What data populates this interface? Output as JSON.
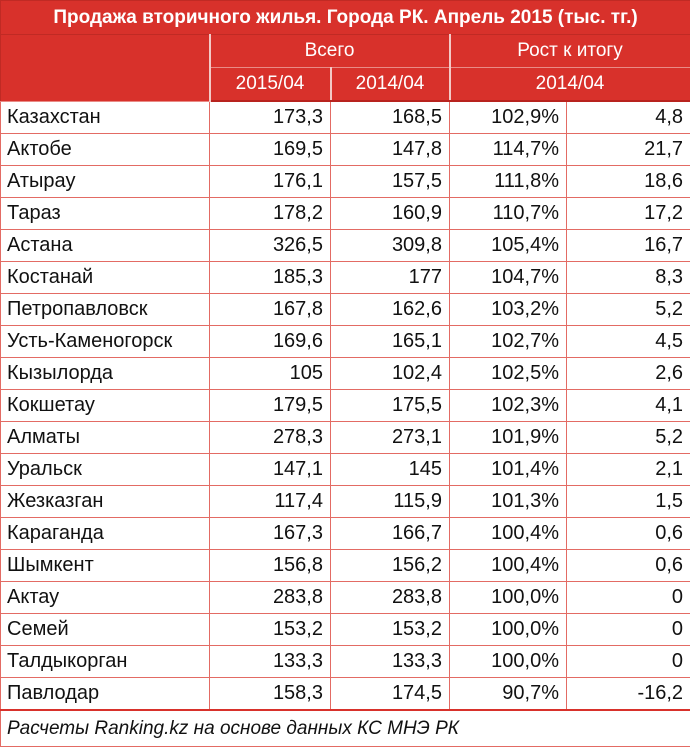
{
  "title": "Продажа вторичного жилья. Города РК. Апрель 2015 (тыс. тг.)",
  "header": {
    "group_total": "Всего",
    "group_growth": "Рост к итогу",
    "col_2015": "2015/04",
    "col_2014": "2014/04",
    "col_growth_period": "2014/04"
  },
  "rows": [
    {
      "city": "Казахстан",
      "v2015": "173,3",
      "v2014": "168,5",
      "pct": "102,9%",
      "diff": "4,8"
    },
    {
      "city": "Актобе",
      "v2015": "169,5",
      "v2014": "147,8",
      "pct": "114,7%",
      "diff": "21,7"
    },
    {
      "city": "Атырау",
      "v2015": "176,1",
      "v2014": "157,5",
      "pct": "111,8%",
      "diff": "18,6"
    },
    {
      "city": "Тараз",
      "v2015": "178,2",
      "v2014": "160,9",
      "pct": "110,7%",
      "diff": "17,2"
    },
    {
      "city": "Астана",
      "v2015": "326,5",
      "v2014": "309,8",
      "pct": "105,4%",
      "diff": "16,7"
    },
    {
      "city": "Костанай",
      "v2015": "185,3",
      "v2014": "177",
      "pct": "104,7%",
      "diff": "8,3"
    },
    {
      "city": "Петропавловск",
      "v2015": "167,8",
      "v2014": "162,6",
      "pct": "103,2%",
      "diff": "5,2"
    },
    {
      "city": "Усть-Каменогорск",
      "v2015": "169,6",
      "v2014": "165,1",
      "pct": "102,7%",
      "diff": "4,5"
    },
    {
      "city": "Кызылорда",
      "v2015": "105",
      "v2014": "102,4",
      "pct": "102,5%",
      "diff": "2,6"
    },
    {
      "city": "Кокшетау",
      "v2015": "179,5",
      "v2014": "175,5",
      "pct": "102,3%",
      "diff": "4,1"
    },
    {
      "city": "Алматы",
      "v2015": "278,3",
      "v2014": "273,1",
      "pct": "101,9%",
      "diff": "5,2"
    },
    {
      "city": "Уральск",
      "v2015": "147,1",
      "v2014": "145",
      "pct": "101,4%",
      "diff": "2,1"
    },
    {
      "city": "Жезказган",
      "v2015": "117,4",
      "v2014": "115,9",
      "pct": "101,3%",
      "diff": "1,5"
    },
    {
      "city": "Караганда",
      "v2015": "167,3",
      "v2014": "166,7",
      "pct": "100,4%",
      "diff": "0,6"
    },
    {
      "city": "Шымкент",
      "v2015": "156,8",
      "v2014": "156,2",
      "pct": "100,4%",
      "diff": "0,6"
    },
    {
      "city": "Актау",
      "v2015": "283,8",
      "v2014": "283,8",
      "pct": "100,0%",
      "diff": "0"
    },
    {
      "city": "Семей",
      "v2015": "153,2",
      "v2014": "153,2",
      "pct": "100,0%",
      "diff": "0"
    },
    {
      "city": "Талдыкорган",
      "v2015": "133,3",
      "v2014": "133,3",
      "pct": "100,0%",
      "diff": "0"
    },
    {
      "city": "Павлодар",
      "v2015": "158,3",
      "v2014": "174,5",
      "pct": "90,7%",
      "diff": "-16,2"
    }
  ],
  "footer": "Расчеты Ranking.kz на основе данных КС МНЭ РК",
  "colors": {
    "header_bg": "#d8312b",
    "header_text": "#ffffff",
    "grid_line": "#e36b64"
  }
}
